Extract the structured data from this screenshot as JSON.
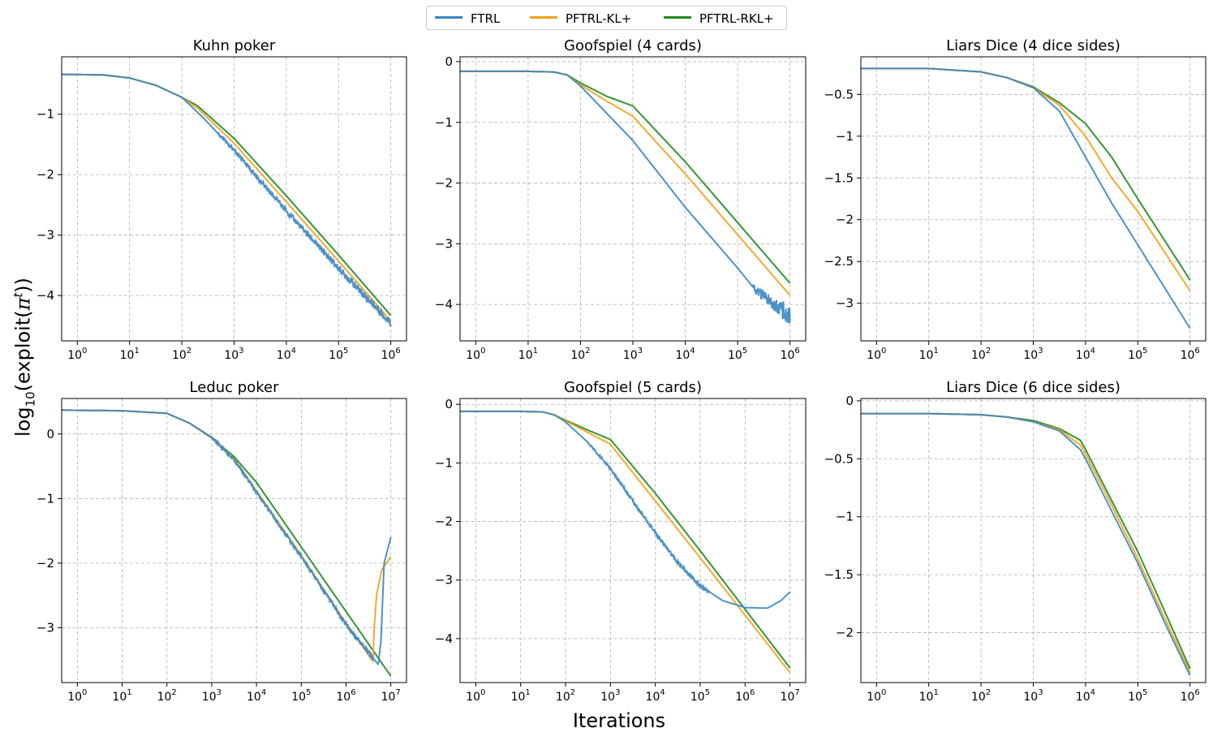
{
  "figure": {
    "ylabel_prefix": "log",
    "ylabel_sub": "10",
    "ylabel_mid": "(exploit(",
    "ylabel_pi": "π",
    "ylabel_sup": "t",
    "ylabel_suffix": "))",
    "xlabel": "Iterations"
  },
  "legend": [
    {
      "label": "FTRL",
      "color": "#3a86c3"
    },
    {
      "label": "PFTRL-KL+",
      "color": "#f5a01a"
    },
    {
      "label": "PFTRL-RKL+",
      "color": "#1f8a1f"
    }
  ],
  "chart_data": [
    {
      "type": "line",
      "title": "Kuhn poker",
      "xscale": "log",
      "xlim_exp": [
        -0.3,
        6.3
      ],
      "ylim": [
        -4.75,
        -0.05
      ],
      "xticks_exp": [
        0,
        1,
        2,
        3,
        4,
        5,
        6
      ],
      "yticks": [
        -4,
        -3,
        -2,
        -1
      ],
      "series": [
        {
          "name": "FTRL",
          "x_exp": [
            -0.3,
            0.5,
            1,
            1.5,
            1.9,
            2,
            2.4,
            3,
            4,
            5,
            6
          ],
          "values": [
            -0.34,
            -0.35,
            -0.4,
            -0.52,
            -0.68,
            -0.72,
            -1.05,
            -1.6,
            -2.6,
            -3.55,
            -4.45
          ],
          "noise": {
            "from": 2.7,
            "to": 6,
            "amp": 0.07
          }
        },
        {
          "name": "PFTRL-KL+",
          "x_exp": [
            -0.3,
            0.5,
            1,
            1.5,
            1.9,
            2,
            2.3,
            3,
            4,
            5,
            6
          ],
          "values": [
            -0.34,
            -0.35,
            -0.4,
            -0.52,
            -0.68,
            -0.72,
            -0.9,
            -1.48,
            -2.45,
            -3.43,
            -4.42
          ]
        },
        {
          "name": "PFTRL-RKL+",
          "x_exp": [
            -0.3,
            0.5,
            1,
            1.5,
            1.9,
            2,
            2.3,
            3,
            4,
            5,
            6
          ],
          "values": [
            -0.34,
            -0.35,
            -0.4,
            -0.52,
            -0.68,
            -0.72,
            -0.86,
            -1.4,
            -2.35,
            -3.33,
            -4.33
          ]
        }
      ]
    },
    {
      "type": "line",
      "title": "Goofspiel (4 cards)",
      "xscale": "log",
      "xlim_exp": [
        -0.3,
        6.3
      ],
      "ylim": [
        -4.6,
        0.08
      ],
      "xticks_exp": [
        0,
        1,
        2,
        3,
        4,
        5,
        6
      ],
      "yticks": [
        -4,
        -3,
        -2,
        -1,
        0
      ],
      "series": [
        {
          "name": "FTRL",
          "x_exp": [
            -0.3,
            0.5,
            1,
            1.5,
            1.75,
            2,
            3,
            4,
            5,
            5.3,
            6
          ],
          "values": [
            -0.16,
            -0.16,
            -0.16,
            -0.17,
            -0.22,
            -0.4,
            -1.3,
            -2.4,
            -3.4,
            -3.72,
            -4.2
          ],
          "noise": {
            "from": 5.3,
            "to": 6,
            "amp": 0.17
          }
        },
        {
          "name": "PFTRL-KL+",
          "x_exp": [
            -0.3,
            0.5,
            1,
            1.5,
            1.75,
            2,
            2.5,
            3,
            4,
            5,
            6
          ],
          "values": [
            -0.16,
            -0.16,
            -0.16,
            -0.17,
            -0.22,
            -0.38,
            -0.65,
            -0.9,
            -1.85,
            -2.85,
            -3.85
          ]
        },
        {
          "name": "PFTRL-RKL+",
          "x_exp": [
            -0.3,
            0.5,
            1,
            1.5,
            1.75,
            2,
            2.5,
            3,
            4,
            5,
            6
          ],
          "values": [
            -0.16,
            -0.16,
            -0.16,
            -0.17,
            -0.22,
            -0.35,
            -0.57,
            -0.73,
            -1.65,
            -2.65,
            -3.65
          ]
        }
      ]
    },
    {
      "type": "line",
      "title": "Liars Dice (4 dice sides)",
      "xscale": "log",
      "xlim_exp": [
        -0.3,
        6.3
      ],
      "ylim": [
        -3.45,
        -0.05
      ],
      "xticks_exp": [
        0,
        1,
        2,
        3,
        4,
        5,
        6
      ],
      "yticks": [
        -3.0,
        -2.5,
        -2.0,
        -1.5,
        -1.0,
        -0.5
      ],
      "series": [
        {
          "name": "FTRL",
          "x_exp": [
            -0.3,
            1,
            2,
            2.5,
            3,
            3.5,
            4,
            4.5,
            5,
            6
          ],
          "values": [
            -0.19,
            -0.19,
            -0.23,
            -0.3,
            -0.42,
            -0.7,
            -1.25,
            -1.8,
            -2.3,
            -3.3
          ]
        },
        {
          "name": "PFTRL-KL+",
          "x_exp": [
            -0.3,
            1,
            2,
            2.5,
            3,
            3.5,
            4,
            4.5,
            5,
            6
          ],
          "values": [
            -0.19,
            -0.19,
            -0.23,
            -0.3,
            -0.42,
            -0.63,
            -1.0,
            -1.5,
            -1.9,
            -2.85
          ]
        },
        {
          "name": "PFTRL-RKL+",
          "x_exp": [
            -0.3,
            1,
            2,
            2.5,
            3,
            3.5,
            4,
            4.5,
            5,
            6
          ],
          "values": [
            -0.19,
            -0.19,
            -0.23,
            -0.3,
            -0.41,
            -0.6,
            -0.85,
            -1.25,
            -1.75,
            -2.72
          ]
        }
      ]
    },
    {
      "type": "line",
      "title": "Leduc poker",
      "xscale": "log",
      "xlim_exp": [
        -0.35,
        7.35
      ],
      "ylim": [
        -3.85,
        0.55
      ],
      "xticks_exp": [
        0,
        1,
        2,
        3,
        4,
        5,
        6,
        7
      ],
      "yticks": [
        -3,
        -2,
        -1,
        0
      ],
      "series": [
        {
          "name": "FTRL",
          "x_exp": [
            -0.35,
            1,
            2,
            2.5,
            3,
            3.5,
            4,
            5,
            6,
            6.72,
            6.78,
            6.85,
            7
          ],
          "values": [
            0.37,
            0.36,
            0.32,
            0.17,
            -0.05,
            -0.4,
            -0.9,
            -1.9,
            -2.95,
            -3.57,
            -3.2,
            -2.0,
            -1.6
          ],
          "noise": {
            "from": 3,
            "to": 6.6,
            "amp": 0.04
          }
        },
        {
          "name": "PFTRL-KL+",
          "x_exp": [
            -0.35,
            1,
            2,
            2.5,
            3,
            3.5,
            4,
            5,
            6,
            6.6,
            6.63,
            6.68,
            6.8,
            7
          ],
          "values": [
            0.37,
            0.36,
            0.32,
            0.17,
            -0.05,
            -0.38,
            -0.88,
            -1.88,
            -2.93,
            -3.52,
            -3.0,
            -2.5,
            -2.1,
            -1.9
          ]
        },
        {
          "name": "PFTRL-RKL+",
          "x_exp": [
            -0.35,
            1,
            2,
            2.5,
            3,
            3.5,
            4,
            5,
            6,
            7
          ],
          "values": [
            0.37,
            0.36,
            0.32,
            0.17,
            -0.06,
            -0.35,
            -0.75,
            -1.75,
            -2.75,
            -3.75
          ]
        }
      ]
    },
    {
      "type": "line",
      "title": "Goofspiel (5 cards)",
      "xscale": "log",
      "xlim_exp": [
        -0.35,
        7.35
      ],
      "ylim": [
        -4.75,
        0.1
      ],
      "xticks_exp": [
        0,
        1,
        2,
        3,
        4,
        5,
        6,
        7
      ],
      "yticks": [
        -4,
        -3,
        -2,
        -1,
        0
      ],
      "series": [
        {
          "name": "FTRL",
          "x_exp": [
            -0.35,
            0.5,
            1,
            1.5,
            1.75,
            2,
            2.5,
            3,
            3.5,
            4,
            4.5,
            5,
            5.5,
            6,
            6.5,
            6.8,
            7
          ],
          "values": [
            -0.12,
            -0.12,
            -0.12,
            -0.13,
            -0.18,
            -0.3,
            -0.65,
            -1.1,
            -1.65,
            -2.2,
            -2.7,
            -3.1,
            -3.35,
            -3.47,
            -3.48,
            -3.35,
            -3.2
          ],
          "noise": {
            "from": 2.5,
            "to": 5.2,
            "amp": 0.04
          }
        },
        {
          "name": "PFTRL-KL+",
          "x_exp": [
            -0.35,
            0.5,
            1,
            1.5,
            1.75,
            2,
            2.5,
            3,
            4,
            5,
            6,
            7
          ],
          "values": [
            -0.12,
            -0.12,
            -0.12,
            -0.13,
            -0.18,
            -0.28,
            -0.48,
            -0.68,
            -1.65,
            -2.62,
            -3.6,
            -4.58
          ]
        },
        {
          "name": "PFTRL-RKL+",
          "x_exp": [
            -0.35,
            0.5,
            1,
            1.5,
            1.75,
            2,
            2.5,
            3,
            4,
            5,
            6,
            7
          ],
          "values": [
            -0.12,
            -0.12,
            -0.12,
            -0.13,
            -0.18,
            -0.27,
            -0.44,
            -0.6,
            -1.52,
            -2.5,
            -3.5,
            -4.5
          ]
        }
      ]
    },
    {
      "type": "line",
      "title": "Liars Dice (6 dice sides)",
      "xscale": "log",
      "xlim_exp": [
        -0.3,
        6.3
      ],
      "ylim": [
        -2.43,
        0.02
      ],
      "xticks_exp": [
        0,
        1,
        2,
        3,
        4,
        5,
        6
      ],
      "yticks": [
        -2.0,
        -1.5,
        -1.0,
        -0.5,
        0.0
      ],
      "series": [
        {
          "name": "FTRL",
          "x_exp": [
            -0.3,
            1,
            2,
            2.5,
            3,
            3.5,
            3.9,
            4,
            4.5,
            5,
            5.5,
            6
          ],
          "values": [
            -0.11,
            -0.11,
            -0.12,
            -0.14,
            -0.18,
            -0.26,
            -0.42,
            -0.5,
            -0.95,
            -1.4,
            -1.9,
            -2.37
          ]
        },
        {
          "name": "PFTRL-KL+",
          "x_exp": [
            -0.3,
            1,
            2,
            2.5,
            3,
            3.5,
            3.9,
            4,
            4.5,
            5,
            5.5,
            6
          ],
          "values": [
            -0.11,
            -0.11,
            -0.12,
            -0.14,
            -0.18,
            -0.25,
            -0.38,
            -0.46,
            -0.9,
            -1.36,
            -1.86,
            -2.34
          ]
        },
        {
          "name": "PFTRL-RKL+",
          "x_exp": [
            -0.3,
            1,
            2,
            2.5,
            3,
            3.5,
            3.9,
            4,
            4.5,
            5,
            5.5,
            6
          ],
          "values": [
            -0.11,
            -0.11,
            -0.12,
            -0.14,
            -0.17,
            -0.24,
            -0.34,
            -0.42,
            -0.86,
            -1.3,
            -1.8,
            -2.31
          ]
        }
      ]
    }
  ]
}
